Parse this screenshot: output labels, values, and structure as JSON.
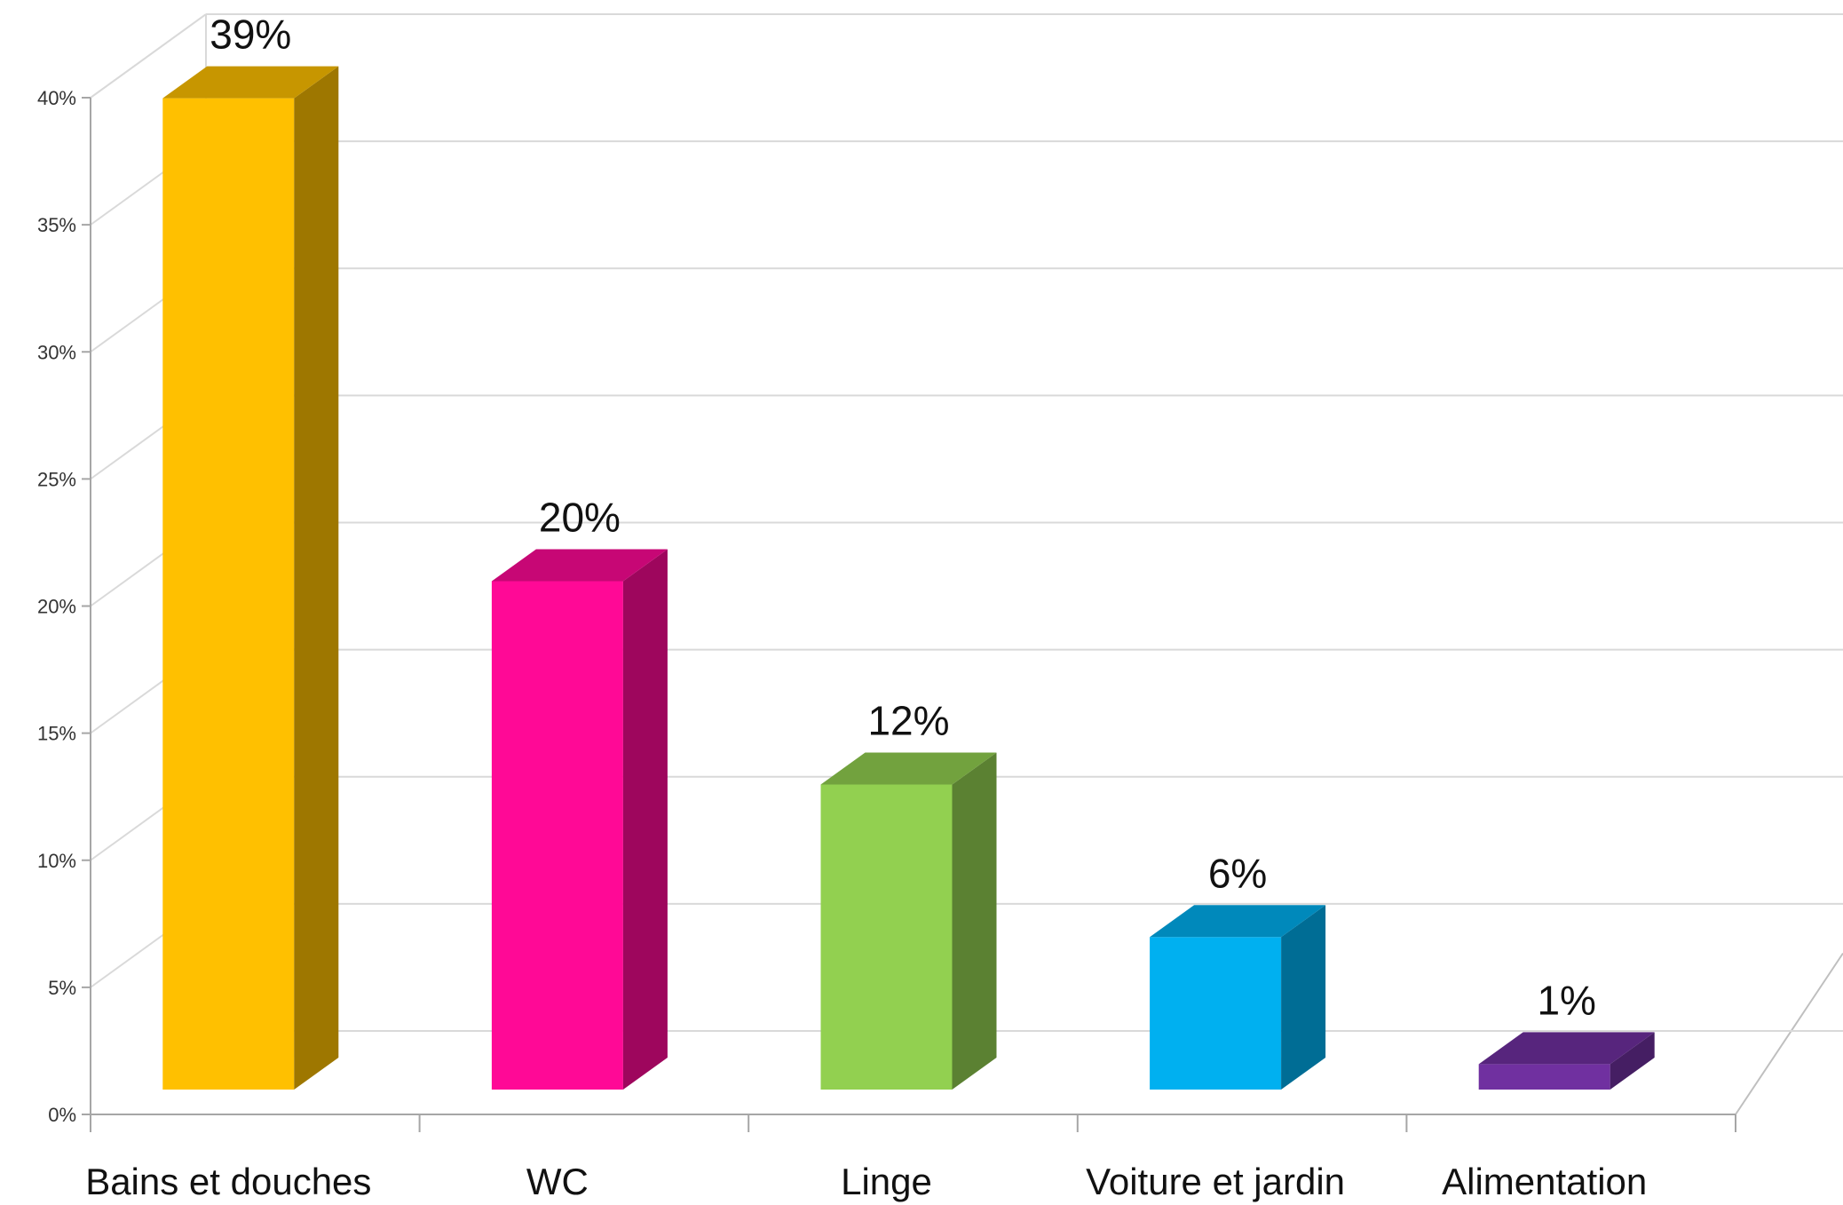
{
  "chart_data": {
    "type": "bar",
    "style": "3d-column",
    "categories": [
      "Bains et douches",
      "WC",
      "Linge",
      "Voiture et jardin",
      "Alimentation"
    ],
    "values": [
      39,
      20,
      12,
      6,
      1
    ],
    "data_labels": [
      "39%",
      "20%",
      "12%",
      "6%",
      "1%"
    ],
    "colors": [
      "#ffc000",
      "#ff0996",
      "#92d050",
      "#00b0f0",
      "#7030a0"
    ],
    "ylim": [
      0,
      40
    ],
    "yticks": [
      0,
      5,
      10,
      15,
      20,
      25,
      30,
      35,
      40
    ],
    "ytick_labels": [
      "0%",
      "5%",
      "10%",
      "15%",
      "20%",
      "25%",
      "30%",
      "35%",
      "40%"
    ],
    "grid": true,
    "legend": "none",
    "title": "",
    "xlabel": "",
    "ylabel": ""
  }
}
